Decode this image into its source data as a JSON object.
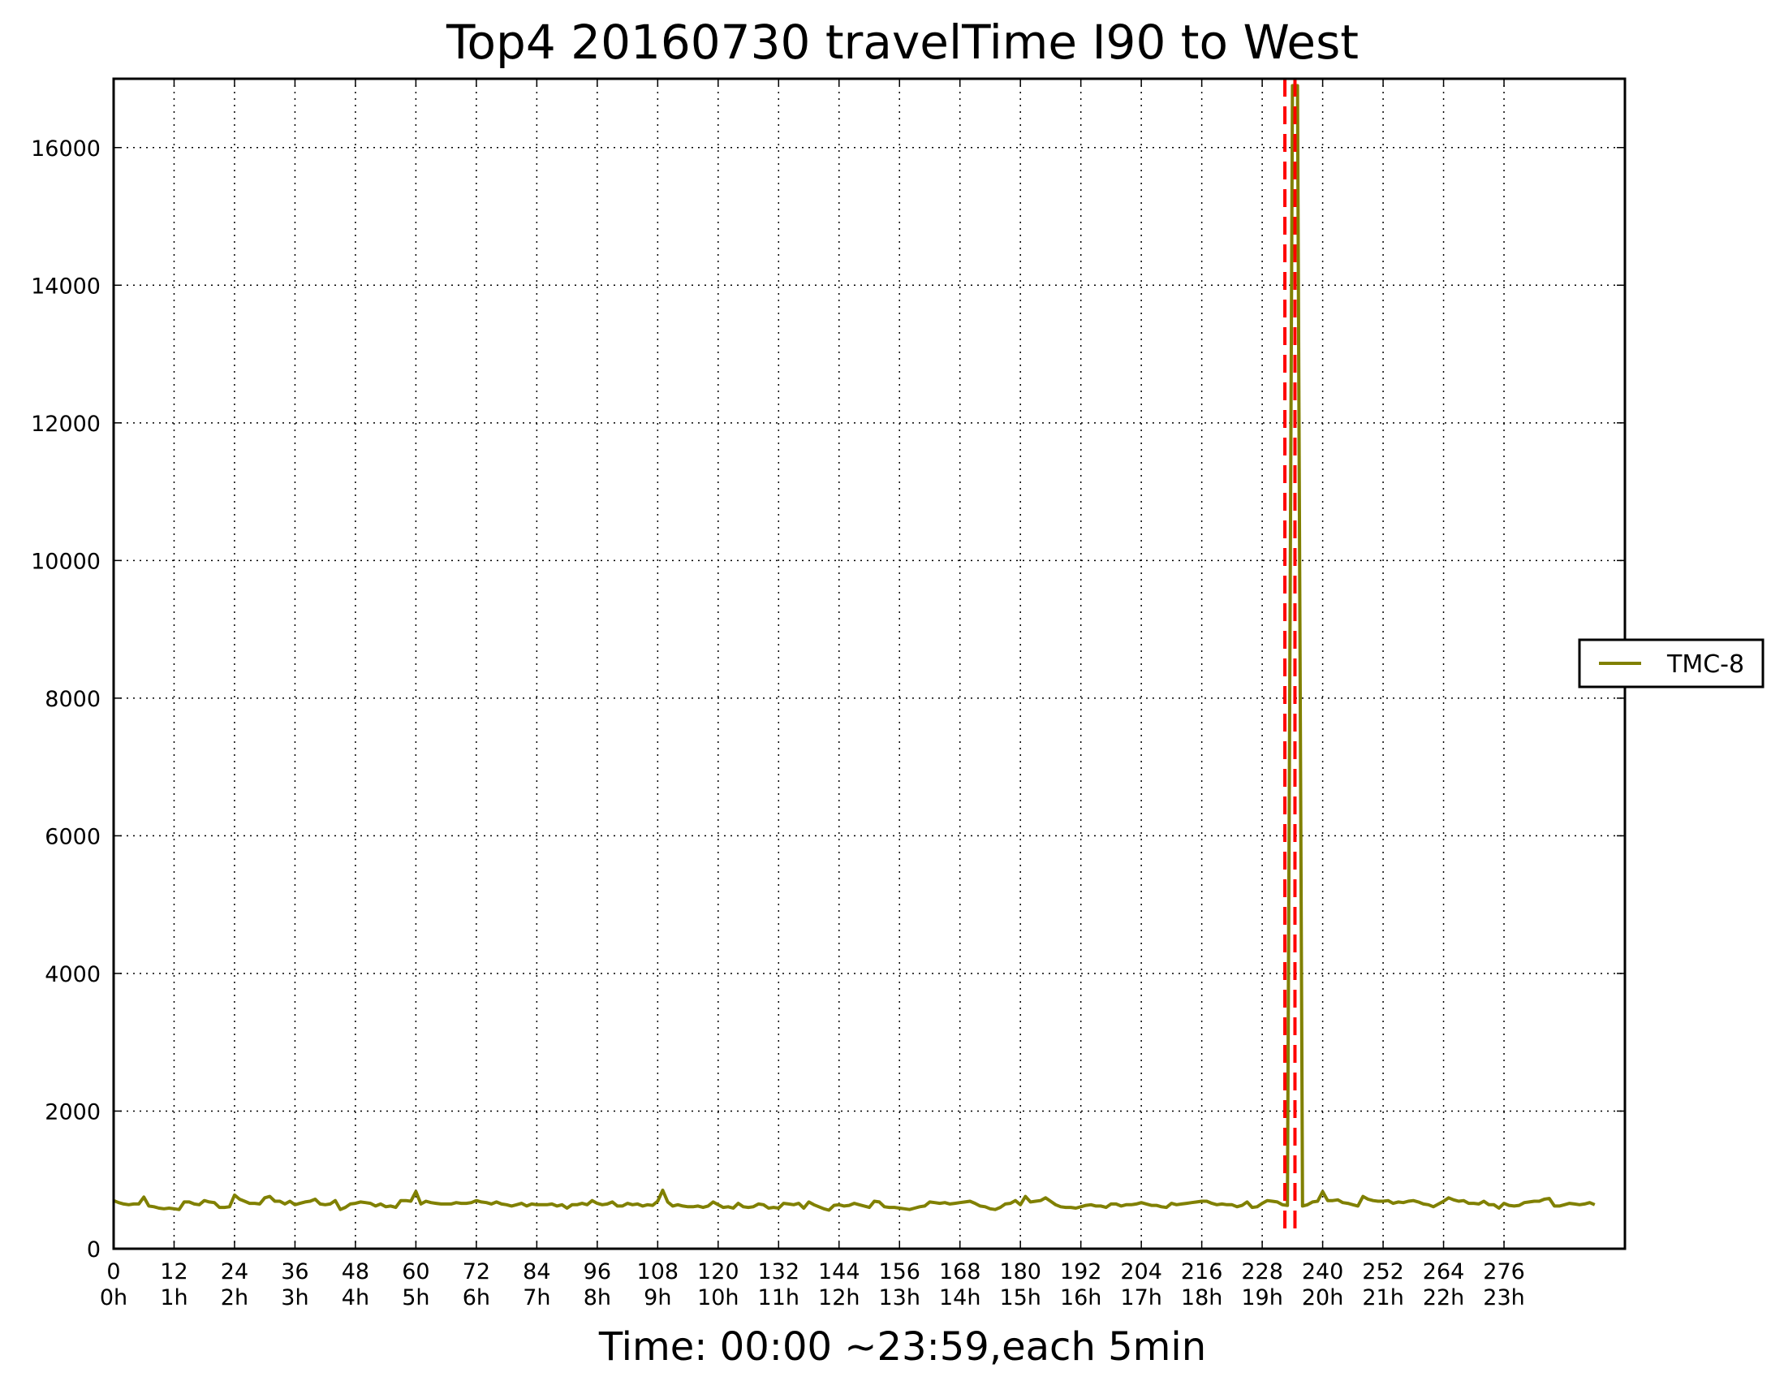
{
  "chart_data": {
    "type": "line",
    "title": "Top4 20160730 travelTime I90 to West",
    "xlabel": "Time: 00:00 ~23:59,each 5min",
    "ylabel": "",
    "xlim": [
      0,
      300
    ],
    "ylim": [
      0,
      17000
    ],
    "grid": true,
    "grid_style": "dotted",
    "legend_position": "right",
    "x_ticks": [
      0,
      12,
      24,
      36,
      48,
      60,
      72,
      84,
      96,
      108,
      120,
      132,
      144,
      156,
      168,
      180,
      192,
      204,
      216,
      228,
      240,
      252,
      264,
      276
    ],
    "x_tick_labels": [
      "0",
      "12",
      "24",
      "36",
      "48",
      "60",
      "72",
      "84",
      "96",
      "108",
      "120",
      "132",
      "144",
      "156",
      "168",
      "180",
      "192",
      "204",
      "216",
      "228",
      "240",
      "252",
      "264",
      "276"
    ],
    "x_tick_sublabels": [
      "0h",
      "1h",
      "2h",
      "3h",
      "4h",
      "5h",
      "6h",
      "7h",
      "8h",
      "9h",
      "10h",
      "11h",
      "12h",
      "13h",
      "14h",
      "15h",
      "16h",
      "17h",
      "18h",
      "19h",
      "20h",
      "21h",
      "22h",
      "23h"
    ],
    "y_ticks": [
      0,
      2000,
      4000,
      6000,
      8000,
      10000,
      12000,
      14000,
      16000
    ],
    "y_tick_labels": [
      "0",
      "2000",
      "4000",
      "6000",
      "8000",
      "10000",
      "12000",
      "14000",
      "16000"
    ],
    "series": [
      {
        "name": "TMC-8",
        "color": "#808000",
        "values": [
          700,
          670,
          650,
          640,
          650,
          650,
          750,
          620,
          610,
          590,
          580,
          590,
          580,
          570,
          680,
          680,
          650,
          640,
          700,
          680,
          670,
          600,
          600,
          610,
          780,
          720,
          690,
          660,
          660,
          650,
          740,
          760,
          690,
          690,
          650,
          690,
          640,
          660,
          680,
          690,
          720,
          650,
          640,
          650,
          700,
          570,
          600,
          650,
          660,
          680,
          670,
          660,
          620,
          650,
          610,
          620,
          600,
          700,
          700,
          690,
          830,
          650,
          690,
          670,
          660,
          650,
          650,
          650,
          670,
          660,
          660,
          670,
          700,
          680,
          670,
          650,
          680,
          650,
          640,
          620,
          640,
          660,
          620,
          650,
          640,
          640,
          640,
          650,
          620,
          640,
          590,
          640,
          640,
          660,
          640,
          700,
          660,
          640,
          650,
          680,
          620,
          620,
          660,
          640,
          650,
          620,
          640,
          630,
          690,
          850,
          680,
          620,
          640,
          620,
          610,
          610,
          620,
          600,
          620,
          680,
          640,
          600,
          610,
          590,
          660,
          610,
          600,
          610,
          650,
          640,
          590,
          600,
          590,
          660,
          650,
          640,
          660,
          590,
          680,
          640,
          610,
          580,
          560,
          630,
          640,
          620,
          630,
          660,
          640,
          620,
          600,
          690,
          680,
          610,
          600,
          600,
          590,
          580,
          570,
          590,
          610,
          620,
          680,
          670,
          660,
          670,
          650,
          660,
          670,
          680,
          690,
          660,
          620,
          610,
          580,
          570,
          600,
          650,
          660,
          700,
          640,
          760,
          680,
          690,
          700,
          740,
          690,
          640,
          610,
          600,
          600,
          590,
          610,
          630,
          640,
          620,
          620,
          600,
          650,
          650,
          620,
          640,
          640,
          650,
          670,
          650,
          630,
          630,
          610,
          600,
          660,
          640,
          650,
          660,
          670,
          680,
          690,
          690,
          660,
          640,
          650,
          640,
          640,
          610,
          630,
          680,
          600,
          610,
          660,
          700,
          690,
          680,
          640,
          630,
          16900,
          16900,
          620,
          640,
          680,
          690,
          830,
          700,
          700,
          710,
          670,
          660,
          640,
          620,
          760,
          720,
          700,
          690,
          690,
          700,
          660,
          680,
          670,
          690,
          700,
          680,
          650,
          640,
          610,
          650,
          690,
          740,
          710,
          690,
          700,
          660,
          660,
          650,
          690,
          640,
          640,
          590,
          660,
          630,
          620,
          630,
          670,
          680,
          690,
          690,
          720,
          730,
          620,
          620,
          640,
          660,
          650,
          640,
          650,
          670,
          640
        ]
      }
    ],
    "reference_lines": {
      "type": "vertical",
      "style": "dashed",
      "color": "#ff0000",
      "x": [
        232.5,
        234.5
      ]
    }
  }
}
